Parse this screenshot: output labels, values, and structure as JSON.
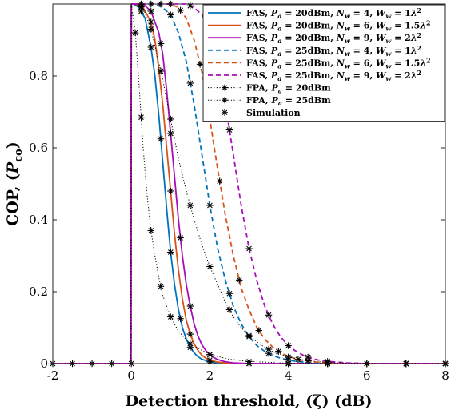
{
  "chart_data": {
    "type": "line",
    "xlabel": "Detection threshold, (ζ) (dB)",
    "ylabel_main": "COP, (",
    "ylabel_var": "P",
    "ylabel_sub": "co",
    "ylabel_close": ")",
    "xlim": [
      -2,
      8
    ],
    "ylim": [
      0,
      1
    ],
    "xticks": [
      -2,
      0,
      2,
      4,
      6,
      8
    ],
    "yticks": [
      0,
      0.2,
      0.4,
      0.6,
      0.8
    ],
    "ytick_labels": [
      "0",
      "0.2",
      "0.4",
      "0.6",
      "0.8"
    ],
    "grid": false,
    "legend_position": "top-right",
    "series": [
      {
        "key": "fas20_4",
        "style": "solid",
        "color": "#0072BD",
        "legend": {
          "pre": "FAS, ",
          "pa": "20dBm",
          "nw": "4",
          "ww": "1"
        },
        "x": [
          -2,
          -0.01,
          0,
          0.05,
          0.2,
          0.35,
          0.5,
          0.6,
          0.7,
          0.8,
          0.9,
          1.0,
          1.1,
          1.2,
          1.3,
          1.4,
          1.5,
          1.6,
          1.7,
          1.8,
          2.0,
          2.2,
          2.5,
          3,
          4,
          5,
          6,
          8
        ],
        "y": [
          0,
          0,
          1,
          1,
          0.99,
          0.96,
          0.88,
          0.8,
          0.69,
          0.56,
          0.43,
          0.31,
          0.22,
          0.15,
          0.1,
          0.068,
          0.045,
          0.03,
          0.019,
          0.012,
          0.005,
          0.002,
          0,
          0,
          0,
          0,
          0,
          0
        ]
      },
      {
        "key": "fas20_6",
        "style": "solid",
        "color": "#D95319",
        "legend": {
          "pre": "FAS, ",
          "pa": "20dBm",
          "nw": "6",
          "ww": "1.5"
        },
        "x": [
          -2,
          -0.01,
          0,
          0.1,
          0.3,
          0.5,
          0.6,
          0.7,
          0.8,
          0.9,
          1.0,
          1.1,
          1.2,
          1.3,
          1.4,
          1.5,
          1.6,
          1.7,
          1.8,
          1.9,
          2.0,
          2.2,
          2.5,
          3,
          4,
          5,
          6,
          8
        ],
        "y": [
          0,
          0,
          1,
          1,
          0.99,
          0.95,
          0.9,
          0.82,
          0.72,
          0.6,
          0.48,
          0.36,
          0.26,
          0.18,
          0.12,
          0.082,
          0.055,
          0.036,
          0.023,
          0.015,
          0.01,
          0.004,
          0.001,
          0,
          0,
          0,
          0,
          0
        ]
      },
      {
        "key": "fas20_9",
        "style": "solid",
        "color": "#A80EB8",
        "legend": {
          "pre": "FAS, ",
          "pa": "20dBm",
          "nw": "9",
          "ww": "2"
        },
        "x": [
          -2,
          -0.01,
          0,
          0.1,
          0.3,
          0.5,
          0.7,
          0.8,
          0.9,
          1.0,
          1.1,
          1.2,
          1.3,
          1.4,
          1.5,
          1.6,
          1.7,
          1.8,
          1.9,
          2.0,
          2.1,
          2.2,
          2.4,
          2.6,
          3,
          4,
          5,
          8
        ],
        "y": [
          0,
          0,
          1,
          1,
          1,
          0.98,
          0.92,
          0.86,
          0.76,
          0.64,
          0.52,
          0.4,
          0.3,
          0.22,
          0.16,
          0.11,
          0.076,
          0.052,
          0.036,
          0.025,
          0.017,
          0.011,
          0.005,
          0.002,
          0,
          0,
          0,
          0
        ]
      },
      {
        "key": "fas25_4",
        "style": "dashed",
        "color": "#0072BD",
        "legend": {
          "pre": "FAS, ",
          "pa": "25dBm",
          "nw": "4",
          "ww": "1"
        },
        "x": [
          -2,
          -0.01,
          0,
          0.3,
          0.6,
          0.8,
          1.0,
          1.2,
          1.4,
          1.6,
          1.8,
          2.0,
          2.2,
          2.4,
          2.6,
          2.8,
          3.0,
          3.2,
          3.4,
          3.6,
          3.8,
          4.0,
          4.2,
          4.5,
          5,
          6,
          8
        ],
        "y": [
          0,
          0,
          1,
          1,
          1,
          0.99,
          0.97,
          0.92,
          0.84,
          0.72,
          0.58,
          0.44,
          0.32,
          0.23,
          0.16,
          0.11,
          0.075,
          0.05,
          0.034,
          0.023,
          0.015,
          0.01,
          0.006,
          0.003,
          0.001,
          0,
          0
        ]
      },
      {
        "key": "fas25_6",
        "style": "dashed",
        "color": "#D95319",
        "legend": {
          "pre": "FAS, ",
          "pa": "25dBm",
          "nw": "6",
          "ww": "1.5"
        },
        "x": [
          -2,
          -0.01,
          0,
          0.5,
          1.0,
          1.2,
          1.4,
          1.6,
          1.8,
          2.0,
          2.2,
          2.4,
          2.6,
          2.8,
          3.0,
          3.2,
          3.4,
          3.6,
          3.8,
          4.0,
          4.2,
          4.4,
          4.6,
          5,
          6,
          8
        ],
        "y": [
          0,
          0,
          1,
          1,
          1,
          0.99,
          0.96,
          0.9,
          0.81,
          0.68,
          0.54,
          0.41,
          0.3,
          0.21,
          0.15,
          0.1,
          0.068,
          0.046,
          0.03,
          0.02,
          0.013,
          0.008,
          0.005,
          0.002,
          0,
          0
        ]
      },
      {
        "key": "fas25_9",
        "style": "dashed",
        "color": "#A80EB8",
        "legend": {
          "pre": "FAS, ",
          "pa": "25dBm",
          "nw": "9",
          "ww": "2"
        },
        "x": [
          -2,
          -0.01,
          0,
          0.5,
          1.0,
          1.4,
          1.6,
          1.8,
          2.0,
          2.2,
          2.4,
          2.6,
          2.8,
          3.0,
          3.2,
          3.4,
          3.6,
          3.8,
          4.0,
          4.2,
          4.4,
          4.6,
          4.8,
          5,
          5.5,
          6,
          8
        ],
        "y": [
          0,
          0,
          1,
          1,
          1,
          1,
          0.99,
          0.97,
          0.92,
          0.84,
          0.72,
          0.58,
          0.44,
          0.32,
          0.23,
          0.16,
          0.11,
          0.075,
          0.05,
          0.034,
          0.022,
          0.014,
          0.009,
          0.006,
          0.002,
          0,
          0
        ]
      },
      {
        "key": "fpa20",
        "style": "dotted",
        "color": "#000000",
        "legend": {
          "pre": "FPA, ",
          "pa": "20dBm"
        },
        "x": [
          -2,
          -0.01,
          0,
          0.1,
          0.2,
          0.3,
          0.4,
          0.5,
          0.6,
          0.7,
          0.8,
          1.0,
          1.2,
          1.5,
          2.0,
          2.5,
          3,
          4,
          5,
          8
        ],
        "y": [
          0,
          0,
          1,
          0.92,
          0.77,
          0.6,
          0.47,
          0.37,
          0.3,
          0.24,
          0.19,
          0.13,
          0.09,
          0.055,
          0.025,
          0.012,
          0.006,
          0.001,
          0,
          0
        ]
      },
      {
        "key": "fpa25",
        "style": "dotted",
        "color": "#000000",
        "legend": {
          "pre": "FPA, ",
          "pa": "25dBm"
        },
        "x": [
          -2,
          -0.01,
          0,
          0.3,
          0.5,
          0.8,
          1.0,
          1.2,
          1.4,
          1.6,
          1.8,
          2.0,
          2.2,
          2.4,
          2.6,
          2.8,
          3.0,
          3.3,
          3.6,
          4.0,
          4.5,
          5,
          6,
          8
        ],
        "y": [
          0,
          0,
          1,
          0.99,
          0.93,
          0.79,
          0.68,
          0.57,
          0.48,
          0.4,
          0.33,
          0.27,
          0.22,
          0.17,
          0.13,
          0.1,
          0.078,
          0.052,
          0.034,
          0.018,
          0.008,
          0.003,
          0,
          0
        ]
      }
    ],
    "simulation_legend": "Simulation",
    "simulation_markers": [
      {
        "series": "fas20_4",
        "x": [
          -2,
          -1.5,
          -1,
          -0.5,
          0,
          0.25,
          0.5,
          0.75,
          1.0,
          1.25,
          1.5,
          2,
          3,
          4,
          5,
          6,
          7,
          8
        ]
      },
      {
        "series": "fas20_6",
        "x": [
          0.25,
          0.5,
          1.0,
          1.5,
          2,
          3,
          4,
          5,
          6,
          7,
          8
        ]
      },
      {
        "series": "fas20_9",
        "x": [
          0.25,
          0.5,
          0.75,
          1.0,
          1.25,
          1.5,
          2,
          3,
          4,
          5,
          6,
          7,
          8
        ]
      },
      {
        "series": "fas25_4",
        "x": [
          0.5,
          1.0,
          1.5,
          2.0,
          2.5,
          3.0,
          3.5,
          4.0,
          5,
          6,
          7,
          8
        ]
      },
      {
        "series": "fas25_6",
        "x": [
          0.75,
          1.25,
          1.75,
          2.25,
          2.75,
          3.25,
          3.75,
          4.25,
          5,
          6,
          7,
          8
        ]
      },
      {
        "series": "fas25_9",
        "x": [
          1.0,
          1.5,
          2.0,
          2.5,
          3.0,
          3.5,
          4.0,
          4.5,
          5,
          6,
          7,
          8
        ]
      },
      {
        "series": "fpa20",
        "x": [
          0.1,
          0.25,
          0.5,
          0.75,
          1.0,
          1.5,
          2,
          3,
          4
        ]
      },
      {
        "series": "fpa25",
        "x": [
          0.25,
          0.5,
          0.75,
          1.0,
          1.5,
          2.0,
          2.5,
          3.0,
          3.5,
          4.0,
          4.5
        ]
      }
    ]
  }
}
